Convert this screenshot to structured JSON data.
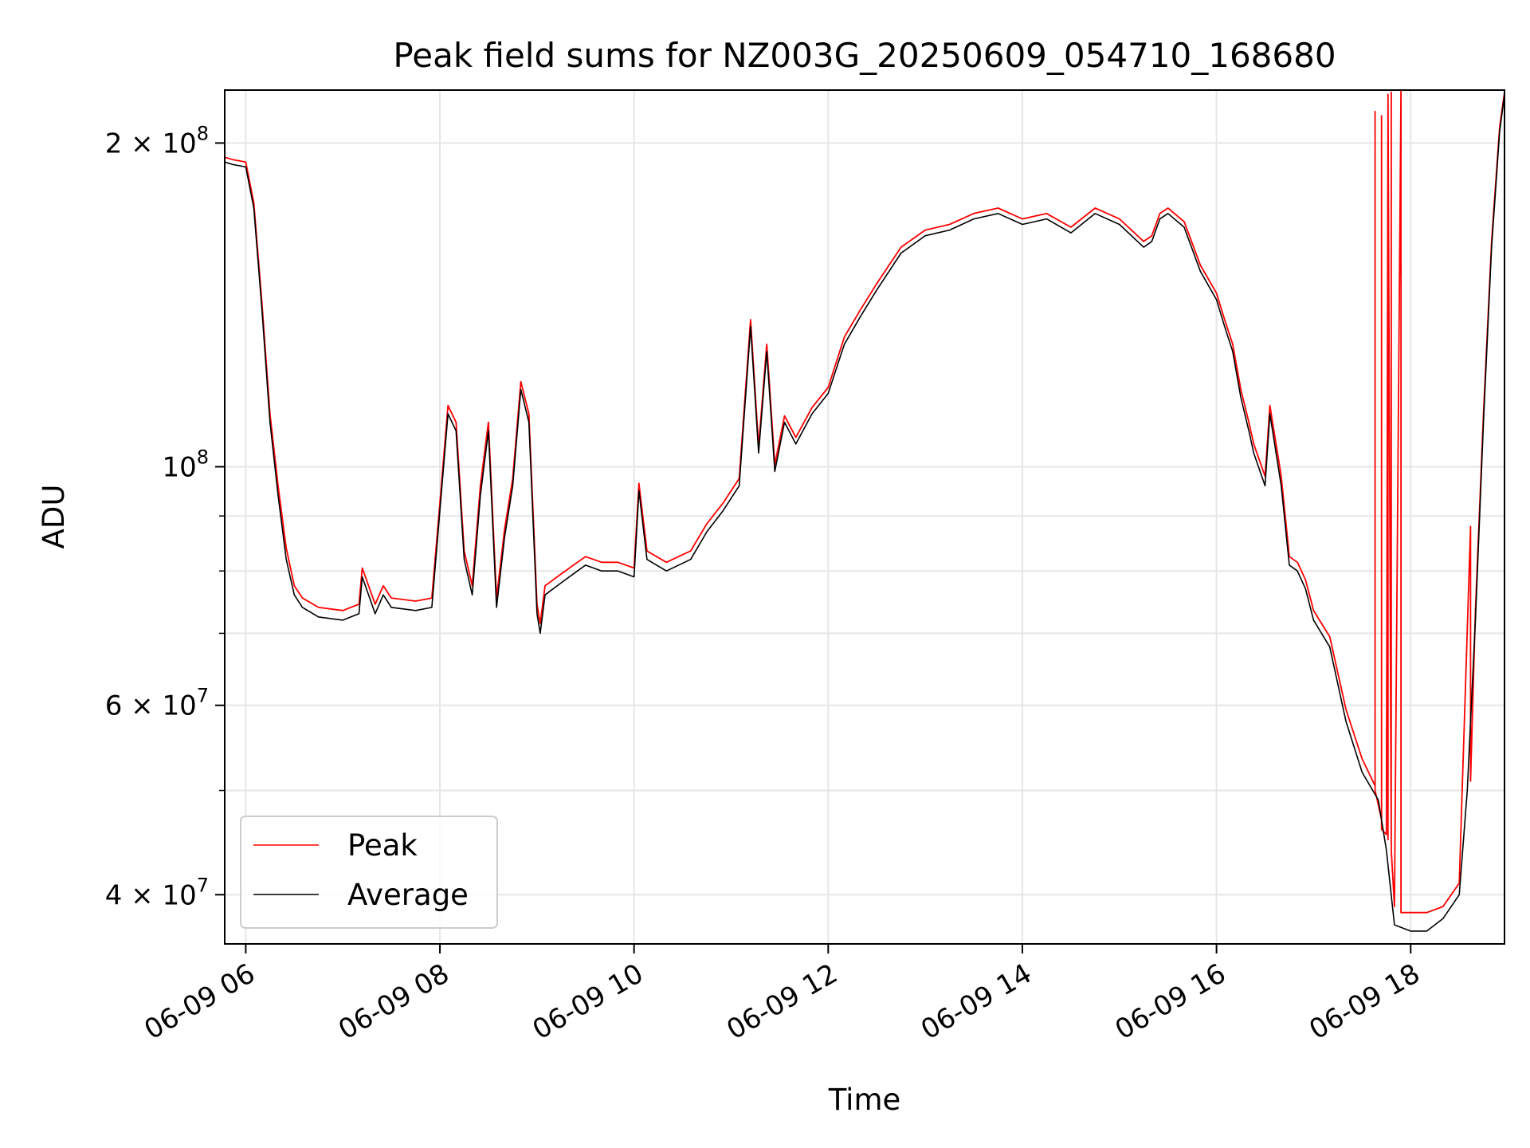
{
  "chart_data": {
    "type": "line",
    "title": "Peak field sums for NZ003G_20250609_054710_168680",
    "xlabel": "Time",
    "ylabel": "ADU",
    "yscale": "log",
    "xlim": [
      "2025-06-09 05:47",
      "2025-06-09 18:58"
    ],
    "ylim": [
      36000000,
      224000000
    ],
    "x_ticks": [
      {
        "value": "2025-06-09 06:00",
        "label": "06-09 06"
      },
      {
        "value": "2025-06-09 08:00",
        "label": "06-09 08"
      },
      {
        "value": "2025-06-09 10:00",
        "label": "06-09 10"
      },
      {
        "value": "2025-06-09 12:00",
        "label": "06-09 12"
      },
      {
        "value": "2025-06-09 14:00",
        "label": "06-09 14"
      },
      {
        "value": "2025-06-09 16:00",
        "label": "06-09 16"
      },
      {
        "value": "2025-06-09 18:00",
        "label": "06-09 18"
      }
    ],
    "y_major_ticks": [
      {
        "value": 40000000,
        "mantissa": "4",
        "exponent": "7"
      },
      {
        "value": 60000000,
        "mantissa": "6",
        "exponent": "7"
      },
      {
        "value": 100000000,
        "mantissa": "",
        "exponent": "8"
      },
      {
        "value": 200000000,
        "mantissa": "2",
        "exponent": "8"
      }
    ],
    "y_minor_ticks": [
      50000000,
      70000000,
      80000000,
      90000000
    ],
    "grid": true,
    "legend": {
      "position": "lower-left",
      "entries": [
        "Peak",
        "Average"
      ]
    },
    "colors": {
      "Peak": "#ff0000",
      "Average": "#000000"
    },
    "series": [
      {
        "name": "Average",
        "x": [
          "2025-06-09 05:47",
          "2025-06-09 05:52",
          "2025-06-09 06:00",
          "2025-06-09 06:05",
          "2025-06-09 06:10",
          "2025-06-09 06:15",
          "2025-06-09 06:20",
          "2025-06-09 06:25",
          "2025-06-09 06:30",
          "2025-06-09 06:35",
          "2025-06-09 06:45",
          "2025-06-09 07:00",
          "2025-06-09 07:10",
          "2025-06-09 07:12",
          "2025-06-09 07:20",
          "2025-06-09 07:25",
          "2025-06-09 07:30",
          "2025-06-09 07:45",
          "2025-06-09 07:55",
          "2025-06-09 08:00",
          "2025-06-09 08:05",
          "2025-06-09 08:10",
          "2025-06-09 08:15",
          "2025-06-09 08:20",
          "2025-06-09 08:25",
          "2025-06-09 08:30",
          "2025-06-09 08:35",
          "2025-06-09 08:40",
          "2025-06-09 08:45",
          "2025-06-09 08:50",
          "2025-06-09 08:55",
          "2025-06-09 09:00",
          "2025-06-09 09:02",
          "2025-06-09 09:05",
          "2025-06-09 09:15",
          "2025-06-09 09:25",
          "2025-06-09 09:30",
          "2025-06-09 09:40",
          "2025-06-09 09:50",
          "2025-06-09 10:00",
          "2025-06-09 10:03",
          "2025-06-09 10:08",
          "2025-06-09 10:20",
          "2025-06-09 10:35",
          "2025-06-09 10:45",
          "2025-06-09 10:55",
          "2025-06-09 11:05",
          "2025-06-09 11:12",
          "2025-06-09 11:17",
          "2025-06-09 11:22",
          "2025-06-09 11:27",
          "2025-06-09 11:33",
          "2025-06-09 11:40",
          "2025-06-09 11:50",
          "2025-06-09 12:00",
          "2025-06-09 12:10",
          "2025-06-09 12:20",
          "2025-06-09 12:30",
          "2025-06-09 12:45",
          "2025-06-09 13:00",
          "2025-06-09 13:15",
          "2025-06-09 13:30",
          "2025-06-09 13:45",
          "2025-06-09 14:00",
          "2025-06-09 14:15",
          "2025-06-09 14:30",
          "2025-06-09 14:45",
          "2025-06-09 15:00",
          "2025-06-09 15:15",
          "2025-06-09 15:20",
          "2025-06-09 15:25",
          "2025-06-09 15:30",
          "2025-06-09 15:40",
          "2025-06-09 15:50",
          "2025-06-09 16:00",
          "2025-06-09 16:05",
          "2025-06-09 16:10",
          "2025-06-09 16:15",
          "2025-06-09 16:20",
          "2025-06-09 16:23",
          "2025-06-09 16:30",
          "2025-06-09 16:33",
          "2025-06-09 16:40",
          "2025-06-09 16:45",
          "2025-06-09 16:50",
          "2025-06-09 16:55",
          "2025-06-09 17:00",
          "2025-06-09 17:10",
          "2025-06-09 17:20",
          "2025-06-09 17:30",
          "2025-06-09 17:40",
          "2025-06-09 17:45",
          "2025-06-09 17:50",
          "2025-06-09 18:00",
          "2025-06-09 18:10",
          "2025-06-09 18:20",
          "2025-06-09 18:30",
          "2025-06-09 18:35",
          "2025-06-09 18:40",
          "2025-06-09 18:45",
          "2025-06-09 18:50",
          "2025-06-09 18:55",
          "2025-06-09 18:58"
        ],
        "values": [
          192000000,
          191000000,
          190000000,
          174000000,
          140000000,
          110000000,
          94000000,
          82000000,
          76000000,
          74000000,
          72500000,
          72000000,
          73000000,
          79000000,
          73000000,
          76000000,
          74000000,
          73500000,
          74000000,
          91000000,
          112000000,
          108000000,
          82000000,
          76000000,
          94000000,
          108000000,
          74000000,
          86000000,
          96000000,
          118000000,
          110000000,
          73000000,
          70000000,
          76000000,
          78000000,
          80000000,
          81000000,
          80000000,
          80000000,
          79000000,
          95000000,
          82000000,
          80000000,
          82000000,
          87000000,
          91000000,
          96000000,
          135000000,
          103000000,
          128000000,
          99000000,
          110000000,
          105000000,
          112000000,
          117000000,
          130000000,
          138000000,
          146000000,
          158000000,
          164000000,
          166000000,
          170000000,
          172000000,
          168000000,
          170000000,
          165000000,
          172000000,
          168000000,
          160000000,
          162000000,
          170000000,
          172000000,
          167000000,
          152000000,
          143000000,
          135000000,
          128000000,
          116000000,
          108000000,
          103000000,
          96000000,
          112000000,
          96000000,
          81000000,
          80000000,
          77000000,
          72000000,
          68000000,
          58000000,
          52000000,
          49000000,
          44000000,
          37500000,
          37000000,
          37000000,
          38000000,
          40000000,
          50000000,
          72000000,
          110000000,
          160000000,
          205000000,
          222000000
        ]
      },
      {
        "name": "Peak",
        "x": [
          "2025-06-09 05:47",
          "2025-06-09 05:52",
          "2025-06-09 06:00",
          "2025-06-09 06:05",
          "2025-06-09 06:10",
          "2025-06-09 06:15",
          "2025-06-09 06:20",
          "2025-06-09 06:25",
          "2025-06-09 06:30",
          "2025-06-09 06:35",
          "2025-06-09 06:45",
          "2025-06-09 07:00",
          "2025-06-09 07:10",
          "2025-06-09 07:12",
          "2025-06-09 07:20",
          "2025-06-09 07:25",
          "2025-06-09 07:30",
          "2025-06-09 07:45",
          "2025-06-09 07:55",
          "2025-06-09 08:00",
          "2025-06-09 08:05",
          "2025-06-09 08:10",
          "2025-06-09 08:15",
          "2025-06-09 08:20",
          "2025-06-09 08:25",
          "2025-06-09 08:30",
          "2025-06-09 08:35",
          "2025-06-09 08:40",
          "2025-06-09 08:45",
          "2025-06-09 08:50",
          "2025-06-09 08:55",
          "2025-06-09 09:00",
          "2025-06-09 09:02",
          "2025-06-09 09:05",
          "2025-06-09 09:15",
          "2025-06-09 09:25",
          "2025-06-09 09:30",
          "2025-06-09 09:40",
          "2025-06-09 09:50",
          "2025-06-09 10:00",
          "2025-06-09 10:03",
          "2025-06-09 10:08",
          "2025-06-09 10:20",
          "2025-06-09 10:35",
          "2025-06-09 10:45",
          "2025-06-09 10:55",
          "2025-06-09 11:05",
          "2025-06-09 11:12",
          "2025-06-09 11:17",
          "2025-06-09 11:22",
          "2025-06-09 11:27",
          "2025-06-09 11:33",
          "2025-06-09 11:40",
          "2025-06-09 11:50",
          "2025-06-09 12:00",
          "2025-06-09 12:10",
          "2025-06-09 12:20",
          "2025-06-09 12:30",
          "2025-06-09 12:45",
          "2025-06-09 13:00",
          "2025-06-09 13:15",
          "2025-06-09 13:30",
          "2025-06-09 13:45",
          "2025-06-09 14:00",
          "2025-06-09 14:15",
          "2025-06-09 14:30",
          "2025-06-09 14:45",
          "2025-06-09 15:00",
          "2025-06-09 15:15",
          "2025-06-09 15:20",
          "2025-06-09 15:25",
          "2025-06-09 15:30",
          "2025-06-09 15:40",
          "2025-06-09 15:50",
          "2025-06-09 16:00",
          "2025-06-09 16:05",
          "2025-06-09 16:10",
          "2025-06-09 16:15",
          "2025-06-09 16:20",
          "2025-06-09 16:23",
          "2025-06-09 16:30",
          "2025-06-09 16:33",
          "2025-06-09 16:40",
          "2025-06-09 16:45",
          "2025-06-09 16:50",
          "2025-06-09 16:55",
          "2025-06-09 17:00",
          "2025-06-09 17:10",
          "2025-06-09 17:20",
          "2025-06-09 17:30",
          "2025-06-09 17:38",
          "2025-06-09 17:38",
          "2025-06-09 17:38",
          "2025-06-09 17:42",
          "2025-06-09 17:42",
          "2025-06-09 17:42",
          "2025-06-09 17:45",
          "2025-06-09 17:46",
          "2025-06-09 17:46",
          "2025-06-09 17:46",
          "2025-06-09 17:48",
          "2025-06-09 17:48",
          "2025-06-09 17:48",
          "2025-06-09 17:50",
          "2025-06-09 17:54",
          "2025-06-09 17:54",
          "2025-06-09 17:54",
          "2025-06-09 18:00",
          "2025-06-09 18:10",
          "2025-06-09 18:20",
          "2025-06-09 18:30",
          "2025-06-09 18:37",
          "2025-06-09 18:37",
          "2025-06-09 18:37",
          "2025-06-09 18:40",
          "2025-06-09 18:45",
          "2025-06-09 18:50",
          "2025-06-09 18:55",
          "2025-06-09 18:58"
        ],
        "values": [
          194000000,
          193000000,
          192000000,
          176000000,
          142000000,
          112000000,
          96000000,
          84000000,
          77500000,
          75500000,
          74000000,
          73500000,
          74500000,
          80500000,
          74500000,
          77500000,
          75500000,
          75000000,
          75500000,
          92500000,
          114000000,
          110000000,
          83500000,
          77500000,
          96000000,
          110000000,
          75500000,
          87500000,
          97500000,
          120000000,
          112000000,
          74500000,
          71500000,
          77500000,
          79500000,
          81500000,
          82500000,
          81500000,
          81500000,
          80500000,
          96500000,
          83500000,
          81500000,
          83500000,
          88500000,
          92500000,
          97500000,
          137000000,
          104500000,
          130000000,
          100500000,
          111500000,
          106500000,
          113500000,
          118500000,
          132000000,
          140000000,
          148000000,
          160000000,
          166000000,
          168000000,
          172000000,
          174000000,
          170000000,
          172000000,
          167000000,
          174000000,
          170000000,
          162000000,
          164000000,
          172000000,
          174000000,
          169000000,
          154000000,
          145000000,
          137000000,
          130000000,
          118000000,
          110000000,
          105000000,
          98000000,
          114000000,
          98000000,
          82500000,
          81500000,
          78500000,
          73500000,
          69500000,
          59500000,
          53500000,
          50500000,
          214000000,
          50000000,
          47000000,
          212000000,
          46000000,
          45500000,
          219000000,
          45000000,
          222000000,
          44500000,
          223000000,
          44000000,
          39000000,
          224000000,
          38500000,
          38500000,
          38500000,
          38500000,
          39000000,
          41000000,
          88000000,
          51000000,
          51000000,
          73500000,
          112000000,
          162000000,
          207000000,
          223000000
        ]
      }
    ]
  }
}
